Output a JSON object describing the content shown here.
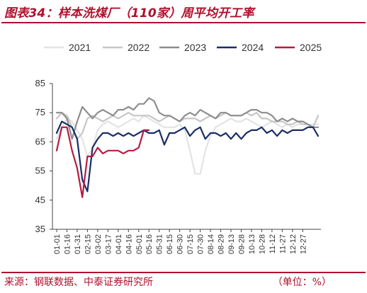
{
  "header": {
    "title": "图表34：样本洗煤厂（110家）周平均开工率"
  },
  "footer": {
    "source": "来源：钢联数据、中泰证券研究所",
    "unit": "（单位：%）"
  },
  "chart_data": {
    "type": "line",
    "title": "",
    "xlabel": "",
    "ylabel": "",
    "ylim": [
      35,
      85
    ],
    "yticks": [
      35,
      45,
      55,
      65,
      75,
      85
    ],
    "legend_position": "top",
    "grid": false,
    "x_ticks": [
      "01-01",
      "01-16",
      "01-31",
      "02-15",
      "03-02",
      "03-17",
      "04-01",
      "04-16",
      "05-01",
      "05-16",
      "05-31",
      "06-15",
      "06-30",
      "07-15",
      "07-30",
      "08-14",
      "08-29",
      "09-13",
      "09-28",
      "10-13",
      "10-28",
      "11-12",
      "11-27",
      "12-12",
      "12-27"
    ],
    "series": [
      {
        "name": "2021",
        "color": "#e3e3e3",
        "values": [
          66,
          70,
          73,
          72,
          69,
          66,
          60,
          63,
          69,
          71,
          72,
          71,
          70,
          71,
          72,
          73,
          72,
          74,
          73,
          72,
          71,
          70,
          70,
          70,
          71,
          69,
          62,
          54,
          54,
          62,
          67,
          70,
          71,
          72,
          73,
          72,
          72,
          73,
          72,
          71,
          70,
          71,
          72,
          71,
          70,
          71,
          70,
          71,
          71,
          71,
          71,
          71
        ]
      },
      {
        "name": "2022",
        "color": "#c6c6c6",
        "values": [
          73,
          75,
          74,
          70,
          66,
          68,
          73,
          74,
          73,
          72,
          73,
          74,
          73,
          74,
          75,
          74,
          74,
          74,
          74,
          73,
          72,
          73,
          74,
          73,
          72,
          73,
          73,
          73,
          72,
          73,
          74,
          73,
          74,
          75,
          74,
          74,
          74,
          75,
          74,
          75,
          73,
          73,
          72,
          72,
          72,
          71,
          71,
          72,
          71,
          71,
          70,
          74
        ]
      },
      {
        "name": "2023",
        "color": "#8d8d8d",
        "values": [
          75,
          75,
          73,
          66,
          72,
          77,
          75,
          73,
          75,
          76,
          75,
          74,
          76,
          76,
          77,
          76,
          78,
          78,
          80,
          79,
          75,
          74,
          74,
          73,
          72,
          74,
          75,
          74,
          76,
          75,
          74,
          73,
          75,
          75,
          74,
          74,
          74,
          75,
          76,
          76,
          75,
          75,
          74,
          72,
          73,
          72,
          73,
          72,
          72,
          71,
          70,
          70
        ]
      },
      {
        "name": "2024",
        "color": "#1a2e66",
        "values": [
          68,
          72,
          71,
          70,
          66,
          52,
          48,
          63,
          66,
          68,
          68,
          67,
          68,
          67,
          68,
          67,
          68,
          69,
          68,
          68,
          69,
          64,
          68,
          68,
          69,
          70,
          67,
          69,
          70,
          66,
          68,
          68,
          67,
          68,
          66,
          68,
          66,
          68,
          69,
          69,
          70,
          68,
          69,
          67,
          69,
          68,
          69,
          69,
          69,
          70,
          70,
          67
        ]
      },
      {
        "name": "2025",
        "color": "#b81a40",
        "values": [
          62,
          70,
          70,
          62,
          56,
          46,
          60,
          60,
          63,
          61,
          62,
          62,
          62,
          61,
          62,
          62,
          63,
          69,
          69
        ]
      }
    ]
  }
}
